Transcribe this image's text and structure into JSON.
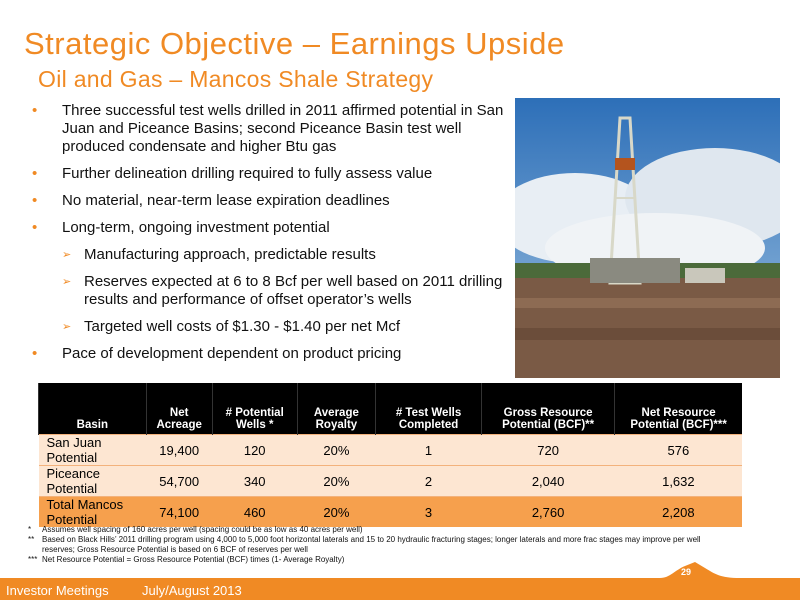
{
  "header": {
    "title": "Strategic Objective – Earnings Upside",
    "subtitle": "Oil and Gas – Mancos Shale Strategy"
  },
  "bullets": [
    {
      "text": "Three successful test wells drilled in 2011 affirmed potential in San Juan and Piceance Basins; second Piceance Basin test well produced condensate and higher Btu gas"
    },
    {
      "text": "Further delineation drilling required to fully assess value"
    },
    {
      "text": "No material, near-term lease expiration deadlines"
    },
    {
      "text": "Long-term, ongoing investment potential",
      "sub": [
        "Manufacturing approach, predictable results",
        "Reserves expected at 6 to 8 Bcf per well based on 2011 drilling results and performance of offset operator’s wells",
        "Targeted well costs of $1.30 - $1.40 per net Mcf"
      ]
    },
    {
      "text": "Pace of development dependent on product pricing"
    }
  ],
  "table": {
    "columns": [
      "Basin",
      "Net Acreage",
      "# Potential Wells *",
      "Average Royalty",
      "# Test Wells Completed",
      "Gross Resource Potential (BCF)**",
      "Net Resource Potential (BCF)***"
    ],
    "rows": [
      [
        "San Juan Potential",
        "19,400",
        "120",
        "20%",
        "1",
        "720",
        "576"
      ],
      [
        "Piceance Potential",
        "54,700",
        "340",
        "20%",
        "2",
        "2,040",
        "1,632"
      ],
      [
        "Total Mancos Potential",
        "74,100",
        "460",
        "20%",
        "3",
        "2,760",
        "2,208"
      ]
    ]
  },
  "footnotes": [
    {
      "marker": "*",
      "text": "Assumes well spacing of 160 acres per well (spacing could be as low as 40 acres per well)"
    },
    {
      "marker": "**",
      "text": "Based on Black Hills’ 2011 drilling program using 4,000 to 5,000 foot horizontal laterals and 15 to 20 hydraulic fracturing stages; longer laterals and more frac stages may improve per well reserves; Gross Resource Potential is based on 6 BCF of reserves per well"
    },
    {
      "marker": "***",
      "text": "Net Resource Potential = Gross Resource Potential (BCF) times (1- Average Royalty)"
    }
  ],
  "footer": {
    "event": "Investor Meetings",
    "date": "July/August 2013",
    "page": "29"
  }
}
